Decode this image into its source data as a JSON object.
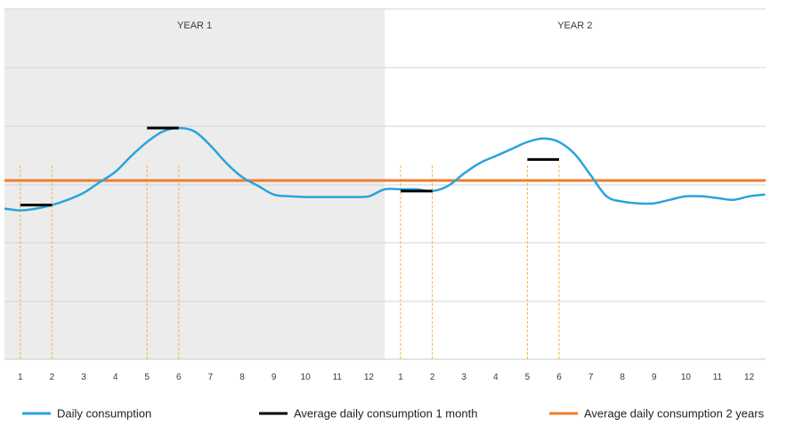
{
  "chart_data": {
    "type": "line",
    "periods": [
      {
        "label": "YEAR 1",
        "shaded": true
      },
      {
        "label": "YEAR 2",
        "shaded": false
      }
    ],
    "tick_labels": [
      "1",
      "2",
      "3",
      "4",
      "5",
      "6",
      "7",
      "8",
      "9",
      "10",
      "11",
      "12",
      "1",
      "2",
      "3",
      "4",
      "5",
      "6",
      "7",
      "8",
      "9",
      "10",
      "11",
      "12"
    ],
    "x_month_index_range": [
      0.0,
      24.0
    ],
    "y_range": [
      0,
      100
    ],
    "grid": true,
    "series": [
      {
        "name": "Daily consumption",
        "color": "#2aa3dd",
        "x": [
          0.0,
          0.5,
          1.0,
          1.5,
          2.0,
          2.5,
          3.0,
          3.5,
          4.0,
          4.5,
          5.0,
          5.5,
          6.0,
          6.5,
          7.0,
          7.5,
          8.0,
          8.5,
          9.0,
          9.5,
          10.0,
          10.5,
          11.0,
          11.5,
          12.0,
          12.5,
          13.0,
          13.5,
          14.0,
          14.5,
          15.0,
          15.5,
          16.0,
          16.5,
          17.0,
          17.5,
          18.0,
          18.5,
          19.0,
          19.5,
          20.0,
          20.5,
          21.0,
          21.5,
          22.0,
          22.5,
          23.0,
          23.5,
          24.0
        ],
        "values": [
          43,
          42.5,
          43,
          44,
          45.5,
          47.5,
          50.5,
          53.5,
          58,
          62,
          65,
          66,
          65,
          61,
          56,
          52,
          49.5,
          47,
          46.5,
          46.3,
          46.3,
          46.3,
          46.3,
          46.5,
          48.5,
          48.5,
          48.5,
          48,
          49.5,
          53,
          56,
          58,
          60,
          62,
          63,
          62,
          58.5,
          52.5,
          46.5,
          45,
          44.5,
          44.5,
          45.5,
          46.5,
          46.5,
          46,
          45.5,
          46.5,
          47
        ]
      },
      {
        "name": "Average daily consumption 1 month",
        "color": "#000000",
        "segments": [
          {
            "x": [
              0.5,
              1.5
            ],
            "value": 44
          },
          {
            "x": [
              4.5,
              5.5
            ],
            "value": 66
          },
          {
            "x": [
              12.5,
              13.5
            ],
            "value": 48
          },
          {
            "x": [
              16.5,
              17.5
            ],
            "value": 57
          }
        ]
      },
      {
        "name": "Average daily consumption 2 years",
        "color": "#ed7d31",
        "value": 51
      }
    ],
    "reference_lines": {
      "color": "#f5b33e",
      "x": [
        0.5,
        1.5,
        4.5,
        5.5,
        12.5,
        13.5,
        16.5,
        17.5
      ]
    },
    "legend_position": "bottom"
  }
}
